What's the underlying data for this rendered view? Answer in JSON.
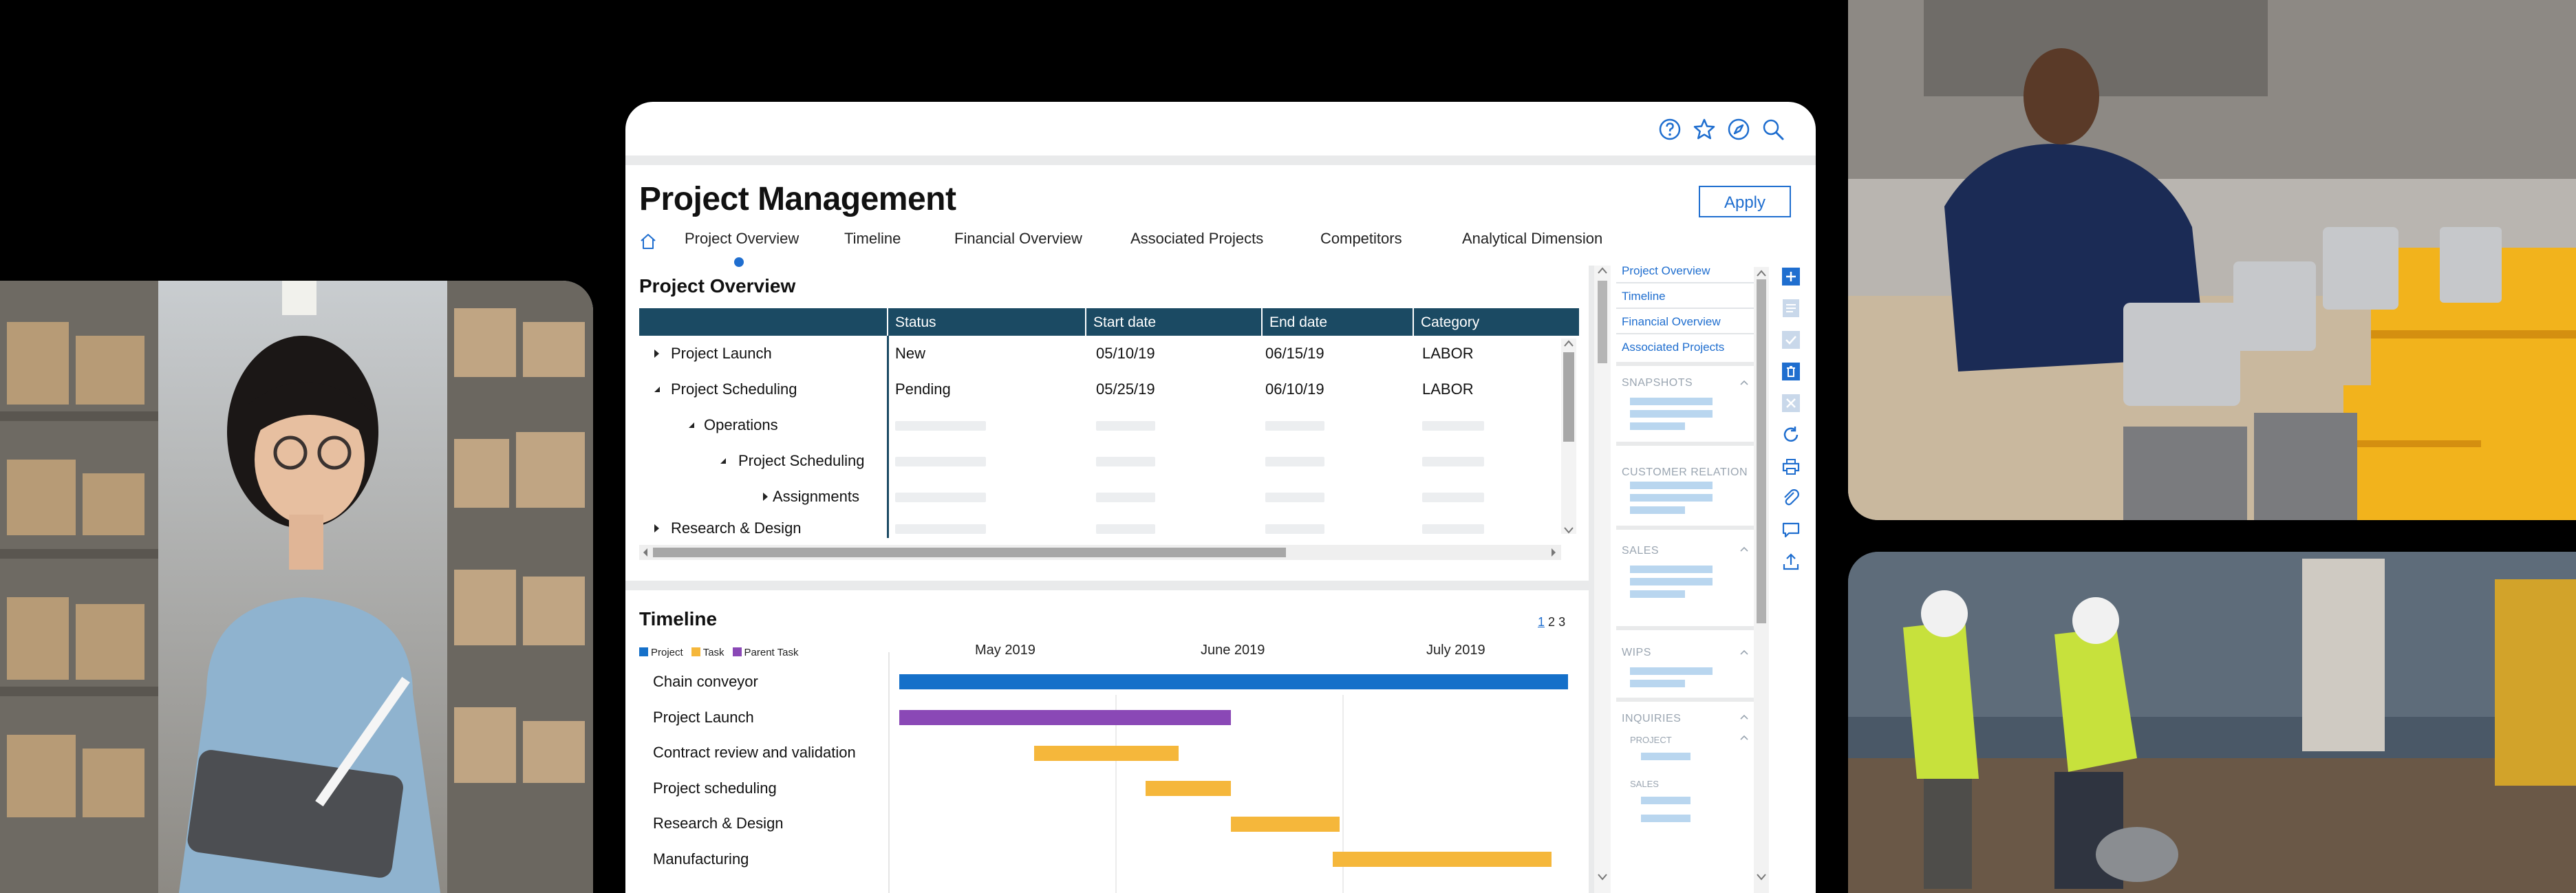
{
  "app": {
    "title": "Project Management",
    "apply_label": "Apply",
    "top_icons": [
      "help-circle-icon",
      "star-icon",
      "compass-icon",
      "search-icon"
    ]
  },
  "tabs": [
    {
      "label": "Project Overview",
      "active": true
    },
    {
      "label": "Timeline"
    },
    {
      "label": "Financial Overview"
    },
    {
      "label": "Associated Projects"
    },
    {
      "label": "Competitors"
    },
    {
      "label": "Analytical Dimension"
    }
  ],
  "overview": {
    "title": "Project Overview",
    "columns": [
      "Status",
      "Start date",
      "End date",
      "Category"
    ],
    "rows": [
      {
        "name": "Project Launch",
        "expander": "collapsed",
        "status": "New",
        "start": "05/10/19",
        "end": "06/15/19",
        "category": "LABOR"
      },
      {
        "name": "Project Scheduling",
        "expander": "expanded",
        "status": "Pending",
        "start": "05/25/19",
        "end": "06/10/19",
        "category": "LABOR"
      },
      {
        "name": "Operations",
        "expander": "expanded",
        "status": "",
        "start": "",
        "end": "",
        "category": ""
      },
      {
        "name": "Project Scheduling",
        "expander": "expanded",
        "status": "",
        "start": "",
        "end": "",
        "category": ""
      },
      {
        "name": "Assignments",
        "expander": "collapsed",
        "status": "",
        "start": "",
        "end": "",
        "category": ""
      },
      {
        "name": "Research & Design",
        "expander": "collapsed",
        "status": "",
        "start": "",
        "end": "",
        "category": ""
      }
    ]
  },
  "timeline": {
    "title": "Timeline",
    "pages": [
      "1",
      "2",
      "3"
    ],
    "current_page": "1",
    "legend": [
      {
        "label": "Project",
        "color": "#1570c9"
      },
      {
        "label": "Task",
        "color": "#f5b73b"
      },
      {
        "label": "Parent Task",
        "color": "#8a48b6"
      }
    ],
    "months": [
      "May 2019",
      "June 2019",
      "July 2019"
    ],
    "rows": [
      {
        "name": "Chain conveyor",
        "type": "Project"
      },
      {
        "name": "Project Launch",
        "type": "Parent Task"
      },
      {
        "name": "Contract review and validation",
        "type": "Task"
      },
      {
        "name": "Project scheduling",
        "type": "Task"
      },
      {
        "name": "Research & Design",
        "type": "Task"
      },
      {
        "name": "Manufacturing",
        "type": "Task"
      }
    ]
  },
  "side_panel": {
    "links": [
      "Project Overview",
      "Timeline",
      "Financial Overview",
      "Associated Projects"
    ],
    "sections": [
      {
        "title": "SNAPSHOTS"
      },
      {
        "title": "CUSTOMER RELATION"
      },
      {
        "title": "SALES"
      },
      {
        "title": "WIPS"
      },
      {
        "title": "INQUIRIES",
        "subs": [
          "PROJECT",
          "SALES"
        ]
      }
    ]
  },
  "actions": [
    "plus-icon",
    "document-icon",
    "checkmark-icon",
    "trash-icon",
    "close-icon",
    "refresh-icon",
    "print-icon",
    "paperclip-icon",
    "comment-icon",
    "upload-icon"
  ],
  "colors": {
    "accent": "#1f6ecf",
    "grid_header": "#1b4a63",
    "project_bar": "#1570c9",
    "task_bar": "#f5b73b",
    "parent_task_bar": "#8a48b6"
  }
}
